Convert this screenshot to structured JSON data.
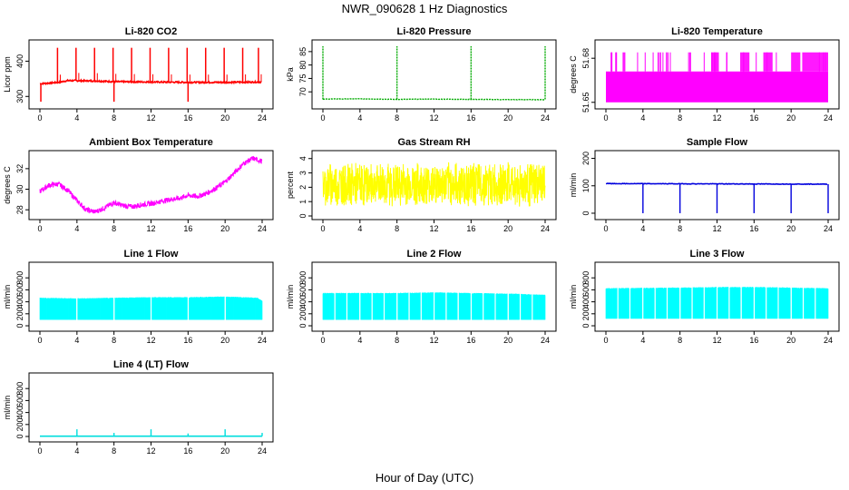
{
  "figure": {
    "title": "NWR_090628  1 Hz Diagnostics",
    "xlabel": "Hour of Day (UTC)"
  },
  "chart_data": [
    {
      "type": "line",
      "title": "Li-820 CO2",
      "ylabel": "Licor ppm",
      "color": "#ff0000",
      "xlim": [
        0,
        24
      ],
      "xticks": [
        0,
        4,
        8,
        12,
        16,
        20,
        24
      ],
      "ylim": [
        275,
        450
      ],
      "yticks": [
        300,
        400
      ],
      "series": [
        {
          "values": "baseline ~338 ppm rising to ~345 by hour 3, ~340 to 24",
          "base": [
            [
              0,
              336
            ],
            [
              2,
              340
            ],
            [
              3,
              345
            ],
            [
              6,
              344
            ],
            [
              8,
              342
            ],
            [
              12,
              341
            ],
            [
              16,
              340
            ],
            [
              20,
              340
            ],
            [
              24,
              341
            ]
          ],
          "spikes_up": [
            1.9,
            3.9,
            5.9,
            7.9,
            9.9,
            11.9,
            13.9,
            15.9,
            17.9,
            19.9,
            21.9,
            23.6
          ],
          "spike_top": 438,
          "spikes_down": [
            0.1,
            8,
            16
          ],
          "spike_bottom": 285
        }
      ]
    },
    {
      "type": "line",
      "title": "Li-820 Pressure",
      "ylabel": "kPa",
      "color": "#00aa00",
      "xlim": [
        0,
        24
      ],
      "xticks": [
        0,
        4,
        8,
        12,
        16,
        20,
        24
      ],
      "ylim": [
        65,
        88
      ],
      "yticks": [
        70,
        75,
        80,
        85
      ],
      "series": [
        {
          "base": [
            [
              0,
              67.2
            ],
            [
              0.2,
              67.3
            ],
            [
              4,
              67.4
            ],
            [
              8,
              67.2
            ],
            [
              12,
              67.3
            ],
            [
              16,
              67.2
            ],
            [
              20,
              67.1
            ],
            [
              24,
              67.1
            ]
          ],
          "spikes_up": [
            0,
            8,
            16,
            24
          ],
          "spike_top": 87
        }
      ]
    },
    {
      "type": "area",
      "title": "Li-820 Temperature",
      "ylabel": "degrees C",
      "color": "#ff00ff",
      "xlim": [
        0,
        24
      ],
      "xticks": [
        0,
        4,
        8,
        12,
        16,
        20,
        24
      ],
      "ylim": [
        51.648,
        51.69
      ],
      "yticks": [
        51.65,
        51.68
      ],
      "series": [
        {
          "low": 51.65,
          "mid": 51.671,
          "high": 51.684,
          "high_regions": [
            [
              0.5,
              0.7
            ],
            [
              1.0,
              1.2
            ],
            [
              1.8,
              2.1
            ],
            [
              9,
              9.2
            ],
            [
              11.5,
              12.2
            ],
            [
              14.5,
              15.5
            ],
            [
              17,
              18
            ],
            [
              20,
              21
            ],
            [
              21.2,
              24
            ]
          ]
        }
      ]
    },
    {
      "type": "line",
      "title": "Ambient Box Temperature",
      "ylabel": "degrees C",
      "color": "#ff00ff",
      "xlim": [
        0,
        24
      ],
      "xticks": [
        0,
        4,
        8,
        12,
        16,
        20,
        24
      ],
      "ylim": [
        27.4,
        33.4
      ],
      "yticks": [
        28,
        30,
        32
      ],
      "series": [
        {
          "values": [
            [
              0,
              29.8
            ],
            [
              1,
              30.4
            ],
            [
              2,
              30.5
            ],
            [
              3,
              29.9
            ],
            [
              4,
              28.9
            ],
            [
              5,
              28.0
            ],
            [
              6,
              27.8
            ],
            [
              7,
              28.2
            ],
            [
              8,
              28.7
            ],
            [
              9,
              28.4
            ],
            [
              10,
              28.3
            ],
            [
              11,
              28.5
            ],
            [
              12,
              28.6
            ],
            [
              13,
              28.8
            ],
            [
              14,
              29.0
            ],
            [
              15,
              29.1
            ],
            [
              16,
              29.4
            ],
            [
              17,
              29.3
            ],
            [
              18,
              29.6
            ],
            [
              19,
              30.1
            ],
            [
              20,
              30.7
            ],
            [
              21,
              31.6
            ],
            [
              22,
              32.5
            ],
            [
              23,
              33.0
            ],
            [
              24,
              32.7
            ]
          ],
          "noise": 0.5
        }
      ]
    },
    {
      "type": "area",
      "title": "Gas Stream RH",
      "ylabel": "percent",
      "color": "#ffff00",
      "xlim": [
        0,
        24
      ],
      "xticks": [
        0,
        4,
        8,
        12,
        16,
        20,
        24
      ],
      "ylim": [
        0,
        4.3
      ],
      "yticks": [
        0,
        1,
        2,
        3,
        4
      ],
      "series": [
        {
          "center": 2.2,
          "low": 0.8,
          "high": 3.6
        }
      ]
    },
    {
      "type": "line",
      "title": "Sample Flow",
      "ylabel": "ml/min",
      "color": "#0000dd",
      "xlim": [
        0,
        24
      ],
      "xticks": [
        0,
        4,
        8,
        12,
        16,
        20,
        24
      ],
      "ylim": [
        -10,
        215
      ],
      "yticks": [
        0,
        100,
        200
      ],
      "series": [
        {
          "base": [
            [
              0,
              108
            ],
            [
              24,
              106
            ]
          ],
          "dips": [
            4,
            8,
            12,
            16,
            20,
            24
          ],
          "dip_bottom": 0
        }
      ]
    },
    {
      "type": "area",
      "title": "Line 1 Flow",
      "ylabel": "ml/min",
      "color": "#00ffff",
      "xlim": [
        0,
        24
      ],
      "xticks": [
        0,
        4,
        8,
        12,
        16,
        20,
        24
      ],
      "ylim": [
        -30,
        1000
      ],
      "yticks": [
        0,
        200,
        400,
        600,
        800
      ],
      "series": [
        {
          "low": 100,
          "high": [
            [
              0,
              470
            ],
            [
              4,
              460
            ],
            [
              8,
              470
            ],
            [
              12,
              480
            ],
            [
              16,
              480
            ],
            [
              20,
              490
            ],
            [
              23.5,
              470
            ],
            [
              24,
              420
            ]
          ],
          "gaps": [
            4,
            8,
            12,
            16,
            20
          ]
        }
      ]
    },
    {
      "type": "area",
      "title": "Line 2 Flow",
      "ylabel": "ml/min",
      "color": "#00ffff",
      "xlim": [
        0,
        24
      ],
      "xticks": [
        0,
        4,
        8,
        12,
        16,
        20,
        24
      ],
      "ylim": [
        -30,
        1000
      ],
      "yticks": [
        0,
        200,
        400,
        600,
        800
      ],
      "series": [
        {
          "low": 100,
          "high": [
            [
              0,
              550
            ],
            [
              8,
              550
            ],
            [
              12,
              560
            ],
            [
              16,
              550
            ],
            [
              20,
              540
            ],
            [
              24,
              520
            ]
          ],
          "gaps": [
            1.3,
            2.6,
            4,
            5.3,
            6.6,
            8,
            9.3,
            10.6,
            12,
            13.3,
            14.6,
            16,
            17.3,
            18.6,
            20,
            21.3,
            22.6
          ]
        }
      ]
    },
    {
      "type": "area",
      "title": "Line 3 Flow",
      "ylabel": "ml/min",
      "color": "#00ffff",
      "xlim": [
        0,
        24
      ],
      "xticks": [
        0,
        4,
        8,
        12,
        16,
        20,
        24
      ],
      "ylim": [
        -30,
        1000
      ],
      "yticks": [
        0,
        200,
        400,
        600,
        800
      ],
      "series": [
        {
          "low": 120,
          "high": [
            [
              0,
              630
            ],
            [
              8,
              640
            ],
            [
              12,
              650
            ],
            [
              16,
              650
            ],
            [
              20,
              640
            ],
            [
              24,
              630
            ]
          ],
          "gaps": [
            1.3,
            2.6,
            4,
            5.3,
            6.6,
            8,
            9.3,
            10.6,
            12,
            13.3,
            14.6,
            16,
            17.3,
            18.6,
            20,
            21.3,
            22.6
          ]
        }
      ]
    },
    {
      "type": "line",
      "title": "Line 4 (LT) Flow",
      "ylabel": "ml/min",
      "color": "#00dddd",
      "xlim": [
        0,
        24
      ],
      "xticks": [
        0,
        4,
        8,
        12,
        16,
        20,
        24
      ],
      "ylim": [
        -30,
        1000
      ],
      "yticks": [
        0,
        200,
        400,
        600,
        800
      ],
      "series": [
        {
          "base": [
            [
              0,
              5
            ],
            [
              24,
              5
            ]
          ],
          "spikes": [
            [
              4,
              120
            ],
            [
              8,
              60
            ],
            [
              12,
              120
            ],
            [
              16,
              50
            ],
            [
              20,
              120
            ],
            [
              24,
              60
            ]
          ]
        }
      ]
    }
  ]
}
